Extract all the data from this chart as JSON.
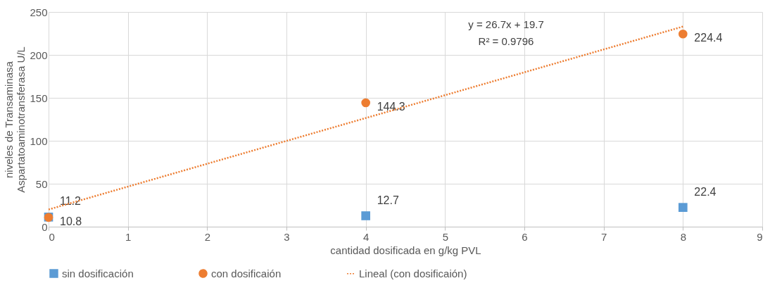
{
  "chart_data": {
    "type": "scatter",
    "xlabel": "cantidad dosificada en g/kg PVL",
    "ylabel": "niveles de Transaminasa\nAspartatoaminotransferasa U/L",
    "xlim": [
      0,
      9
    ],
    "xticks": [
      0,
      1,
      2,
      3,
      4,
      5,
      6,
      7,
      8,
      9
    ],
    "ylim": [
      0,
      250
    ],
    "yticks": [
      0,
      50,
      100,
      150,
      200,
      250
    ],
    "grid": true,
    "legend": "bottom",
    "series": [
      {
        "name": "sin dosificación",
        "color": "#5b9bd5",
        "marker": "square",
        "x": [
          0,
          4,
          8
        ],
        "values": [
          11.2,
          12.7,
          22.4
        ],
        "value_labels": [
          "11.2",
          "12.7",
          "22.4"
        ]
      },
      {
        "name": "con dosificaión",
        "color": "#ed7d31",
        "marker": "circle",
        "x": [
          0,
          4,
          8
        ],
        "values": [
          10.8,
          144.3,
          224.4
        ],
        "value_labels": [
          "10.8",
          "144.3",
          "224.4"
        ]
      },
      {
        "name": "Lineal (con dosificaión)",
        "type": "line",
        "color": "#ed7d31",
        "marker": "none",
        "line_style": "dotted",
        "x": [
          0,
          8
        ],
        "values": [
          20,
          233
        ]
      }
    ],
    "annotations": [
      "y = 26.7x + 19.7",
      "R² = 0.9796"
    ]
  }
}
